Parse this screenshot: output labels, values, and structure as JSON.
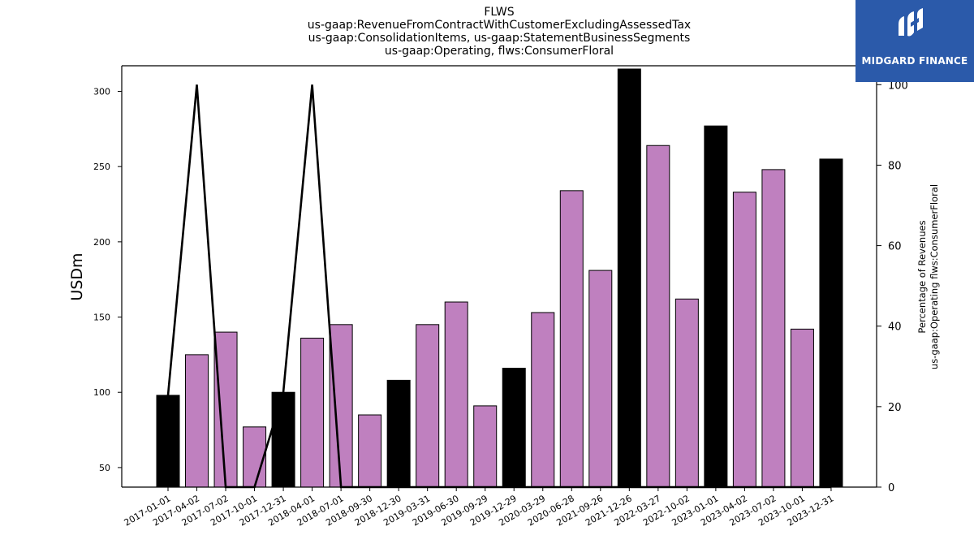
{
  "titles": {
    "line1": "FLWS",
    "line2": "us-gaap:RevenueFromContractWithCustomerExcludingAssessedTax",
    "line3": "us-gaap:ConsolidationItems, us-gaap:StatementBusinessSegments",
    "line4": "us-gaap:Operating, flws:ConsumerFloral"
  },
  "logo": {
    "text": "MIDGARD FINANCE",
    "color": "#2b5aaa"
  },
  "chart_data": {
    "type": "bar",
    "ylabel": "USDm",
    "y2label_line1": "Percentage of Revenues",
    "y2label_line2": "us-gaap:Operating flws:ConsumerFloral",
    "ylim": [
      37,
      317
    ],
    "y2lim": [
      0,
      104.7
    ],
    "yticks": [
      50,
      100,
      150,
      200,
      250,
      300
    ],
    "y2ticks": [
      0,
      20,
      40,
      60,
      80,
      100
    ],
    "categories": [
      "2017-01-01",
      "2017-04-02",
      "2017-07-02",
      "2017-10-01",
      "2017-12-31",
      "2018-04-01",
      "2018-07-01",
      "2018-09-30",
      "2018-12-30",
      "2019-03-31",
      "2019-06-30",
      "2019-09-29",
      "2019-12-29",
      "2020-03-29",
      "2020-06-28",
      "2021-09-26",
      "2021-12-26",
      "2022-03-27",
      "2022-10-02",
      "2023-01-01",
      "2023-04-02",
      "2023-07-02",
      "2023-10-01",
      "2023-12-31"
    ],
    "values": [
      98,
      125,
      140,
      77,
      100,
      136,
      145,
      85,
      108,
      145,
      160,
      91,
      116,
      153,
      234,
      181,
      315,
      264,
      162,
      277,
      233,
      248,
      142,
      255
    ],
    "bar_colors": [
      "#000000",
      "#bf80bf",
      "#bf80bf",
      "#bf80bf",
      "#000000",
      "#bf80bf",
      "#bf80bf",
      "#bf80bf",
      "#000000",
      "#bf80bf",
      "#bf80bf",
      "#bf80bf",
      "#000000",
      "#bf80bf",
      "#bf80bf",
      "#bf80bf",
      "#000000",
      "#bf80bf",
      "#bf80bf",
      "#000000",
      "#bf80bf",
      "#bf80bf",
      "#bf80bf",
      "#000000"
    ],
    "line_values": [
      22.8,
      100,
      0,
      0,
      23.6,
      100,
      0,
      0,
      0,
      0,
      0,
      0,
      0,
      0,
      0,
      0,
      0,
      0,
      0,
      0,
      0,
      0,
      0,
      0
    ],
    "line_color": "#000000",
    "grid": false
  }
}
